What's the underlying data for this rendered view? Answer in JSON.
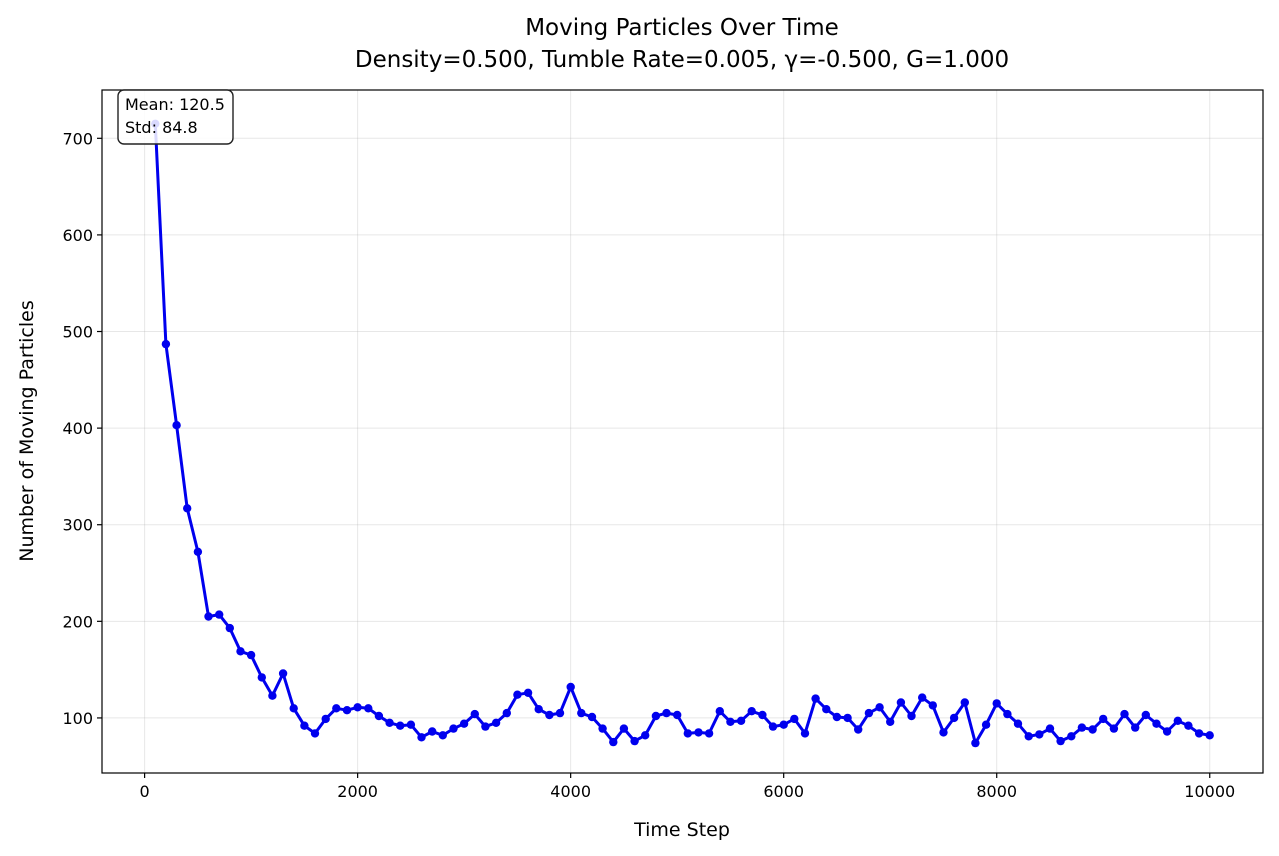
{
  "chart_data": {
    "type": "line",
    "title": "Moving Particles Over Time",
    "subtitle": "Density=0.500, Tumble Rate=0.005, γ=-0.500, G=1.000",
    "xlabel": "Time Step",
    "ylabel": "Number of Moving Particles",
    "xlim": [
      -400,
      10500
    ],
    "ylim": [
      43,
      750
    ],
    "xticks": [
      0,
      2000,
      4000,
      6000,
      8000,
      10000
    ],
    "yticks": [
      100,
      200,
      300,
      400,
      500,
      600,
      700
    ],
    "grid": true,
    "line_color": "#0000ee",
    "stats": {
      "mean_label": "Mean: 120.5",
      "std_label": "Std: 84.8"
    },
    "series": [
      {
        "x": [
          100,
          200,
          300,
          400,
          500,
          600,
          700,
          800,
          900,
          1000,
          1100,
          1200,
          1300,
          1400,
          1500,
          1600,
          1700,
          1800,
          1900,
          2000,
          2100,
          2200,
          2300,
          2400,
          2500,
          2600,
          2700,
          2800,
          2900,
          3000,
          3100,
          3200,
          3300,
          3400,
          3500,
          3600,
          3700,
          3800,
          3900,
          4000,
          4100,
          4200,
          4300,
          4400,
          4500,
          4600,
          4700,
          4800,
          4900,
          5000,
          5100,
          5200,
          5300,
          5400,
          5500,
          5600,
          5700,
          5800,
          5900,
          6000,
          6100,
          6200,
          6300,
          6400,
          6500,
          6600,
          6700,
          6800,
          6900,
          7000,
          7100,
          7200,
          7300,
          7400,
          7500,
          7600,
          7700,
          7800,
          7900,
          8000,
          8100,
          8200,
          8300,
          8400,
          8500,
          8600,
          8700,
          8800,
          8900,
          9000,
          9100,
          9200,
          9300,
          9400,
          9500,
          9600,
          9700,
          9800,
          9900,
          10000
        ],
        "values": [
          715,
          487,
          403,
          317,
          272,
          205,
          207,
          193,
          169,
          165,
          142,
          123,
          146,
          110,
          92,
          84,
          99,
          110,
          108,
          111,
          110,
          102,
          95,
          92,
          93,
          80,
          86,
          82,
          89,
          94,
          104,
          91,
          95,
          105,
          124,
          126,
          109,
          103,
          105,
          132,
          105,
          101,
          89,
          75,
          89,
          76,
          82,
          102,
          105,
          103,
          84,
          85,
          84,
          107,
          96,
          97,
          107,
          103,
          91,
          93,
          99,
          84,
          120,
          109,
          101,
          100,
          88,
          105,
          111,
          96,
          116,
          102,
          121,
          113,
          85,
          100,
          116,
          74,
          93,
          115,
          104,
          94,
          81,
          83,
          89,
          76,
          81,
          90,
          88,
          99,
          89,
          104,
          90,
          103,
          94,
          86,
          97,
          92,
          84,
          82
        ]
      }
    ]
  }
}
